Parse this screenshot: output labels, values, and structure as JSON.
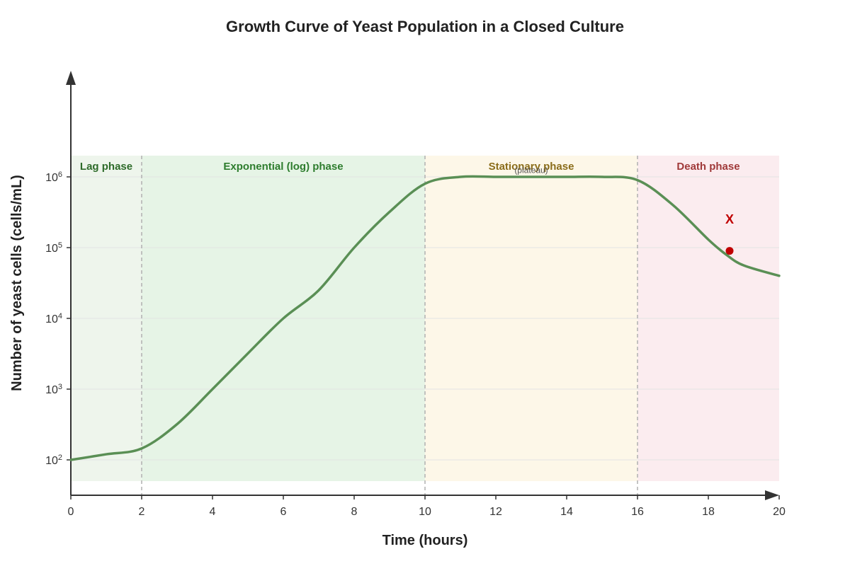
{
  "chart_data": {
    "type": "line",
    "title": "Growth Curve of Yeast Population in a Closed Culture",
    "xlabel": "Time (hours)",
    "ylabel": "Number of yeast cells (cells/mL)",
    "xlim": [
      0,
      20
    ],
    "ylim_log10": [
      1.5,
      6
    ],
    "y_scale": "log",
    "x_ticks": [
      "0",
      "2",
      "4",
      "6",
      "8",
      "10",
      "12",
      "14",
      "16",
      "18",
      "20"
    ],
    "y_ticks": [
      {
        "exp": 2,
        "base": "10",
        "sup": "2"
      },
      {
        "exp": 3,
        "base": "10",
        "sup": "3"
      },
      {
        "exp": 4,
        "base": "10",
        "sup": "4"
      },
      {
        "exp": 5,
        "base": "10",
        "sup": "5"
      },
      {
        "exp": 6,
        "base": "10",
        "sup": "6"
      }
    ],
    "grid": true,
    "series": [
      {
        "color": "#5a8f55",
        "points": [
          {
            "x": 0,
            "y": 100
          },
          {
            "x": 1,
            "y": 120
          },
          {
            "x": 2,
            "y": 145
          },
          {
            "x": 3,
            "y": 320
          },
          {
            "x": 4,
            "y": 1000
          },
          {
            "x": 5,
            "y": 3200
          },
          {
            "x": 6,
            "y": 10000
          },
          {
            "x": 7,
            "y": 25000
          },
          {
            "x": 8,
            "y": 100000
          },
          {
            "x": 9,
            "y": 320000
          },
          {
            "x": 10,
            "y": 800000
          },
          {
            "x": 11,
            "y": 1000000
          },
          {
            "x": 12,
            "y": 1000000
          },
          {
            "x": 13,
            "y": 1000000
          },
          {
            "x": 14,
            "y": 1000000
          },
          {
            "x": 15,
            "y": 1000000
          },
          {
            "x": 16,
            "y": 900000
          },
          {
            "x": 17,
            "y": 400000
          },
          {
            "x": 18,
            "y": 130000
          },
          {
            "x": 18.5,
            "y": 80000
          },
          {
            "x": 19,
            "y": 56000
          },
          {
            "x": 20,
            "y": 40000
          }
        ]
      }
    ],
    "phases": [
      {
        "name": "Lag phase",
        "x_start": 0,
        "x_end": 2,
        "fill": "#eef5ec",
        "text_color": "#2e6b2a"
      },
      {
        "name": "Exponential (log) phase",
        "x_start": 2,
        "x_end": 10,
        "fill": "#e6f4e6",
        "text_color": "#2e7d2e"
      },
      {
        "name": "Stationary phase",
        "x_start": 10,
        "x_end": 16,
        "fill": "#fdf7e8",
        "text_color": "#8b6d1a"
      },
      {
        "name": "Death phase",
        "x_start": 16,
        "x_end": 20,
        "fill": "#fbecef",
        "text_color": "#a03a3a"
      }
    ],
    "phase_boundaries": [
      2,
      10,
      16
    ],
    "annotations": [
      {
        "text": "(plateau)",
        "x": 13,
        "y": 1130000
      },
      {
        "text": "X",
        "x": 18.6,
        "y": 220000
      }
    ],
    "marker_point": {
      "x": 18.6,
      "y": 90000,
      "color": "#c00000"
    }
  }
}
